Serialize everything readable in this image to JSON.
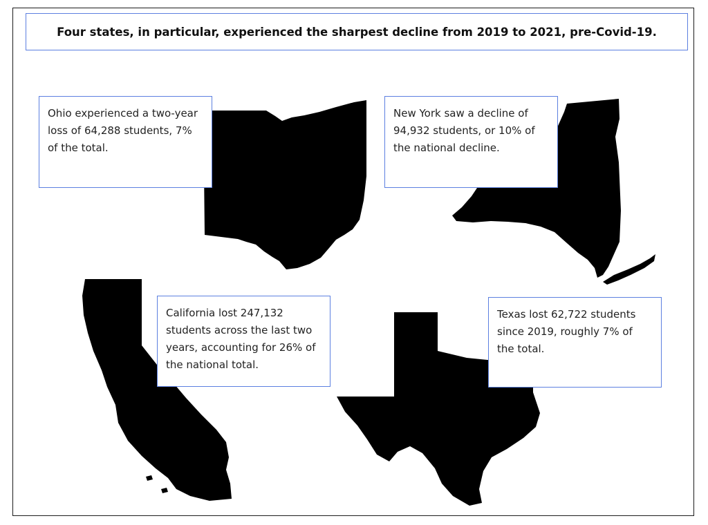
{
  "title": "Four states, in particular, experienced the sharpest decline from 2019 to 2021, pre-Covid-19.",
  "callouts": {
    "ohio": "Ohio experienced a two-year loss of 64,288 students, 7% of the total.",
    "new_york": "New York saw a decline of 94,932 students, or 10% of the national decline.",
    "california": "California lost 247,132 students across the last two years, accounting for 26% of the national total.",
    "texas": "Texas lost 62,722 students since 2019, roughly 7% of the total."
  },
  "colors": {
    "accent_border": "#5b7fe0",
    "state_fill": "#000000",
    "frame": "#1a1a1a"
  }
}
